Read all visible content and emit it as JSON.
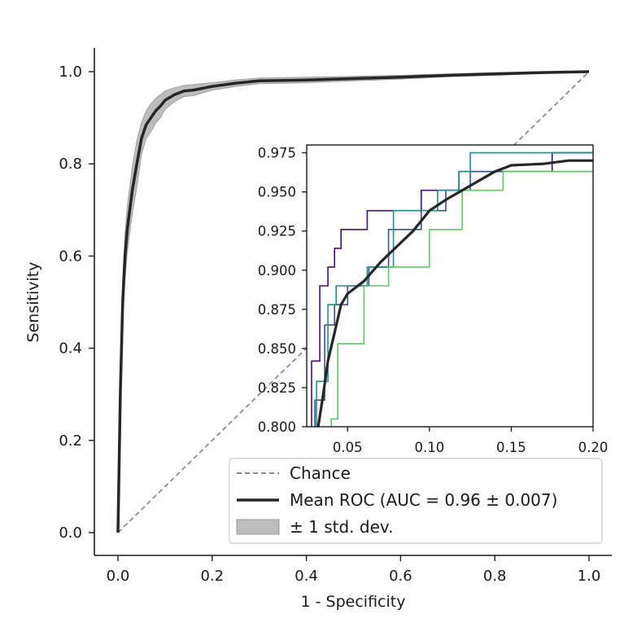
{
  "chart_data": {
    "type": "line",
    "xlabel": "1 - Specificity",
    "ylabel": "Sensitivity",
    "xlim": [
      0.0,
      1.0
    ],
    "ylim": [
      0.0,
      1.0
    ],
    "x_ticks": [
      0.0,
      0.2,
      0.4,
      0.6,
      0.8,
      1.0
    ],
    "x_tick_labels": [
      "0.0",
      "0.2",
      "0.4",
      "0.6",
      "0.8",
      "1.0"
    ],
    "y_ticks": [
      0.0,
      0.2,
      0.4,
      0.6,
      0.8,
      1.0
    ],
    "y_tick_labels": [
      "0.0",
      "0.2",
      "0.4",
      "0.6",
      "0.8",
      "1.0"
    ],
    "grid": false,
    "legend_position": "bottom-right",
    "legend": [
      {
        "label": "Chance",
        "style": "dashed-line",
        "color": "#8c8c8c"
      },
      {
        "label": "Mean ROC (AUC = 0.96 ± 0.007)",
        "style": "solid-line",
        "color": "#262626"
      },
      {
        "label": "± 1 std. dev.",
        "style": "patch",
        "color": "#bdbdbd"
      }
    ],
    "series": [
      {
        "name": "Chance",
        "color": "#8c8c8c",
        "x": [
          0.0,
          1.0
        ],
        "y": [
          0.0,
          1.0
        ]
      },
      {
        "name": "Mean ROC (AUC = 0.96 ± 0.007)",
        "color": "#262626",
        "x": [
          0.0,
          0.005,
          0.01,
          0.015,
          0.02,
          0.03,
          0.04,
          0.05,
          0.06,
          0.07,
          0.08,
          0.09,
          0.1,
          0.12,
          0.14,
          0.16,
          0.2,
          0.25,
          0.3,
          0.4,
          0.5,
          0.6,
          0.7,
          0.8,
          0.9,
          1.0
        ],
        "y": [
          0.0,
          0.3,
          0.5,
          0.6,
          0.66,
          0.74,
          0.8,
          0.855,
          0.885,
          0.9,
          0.915,
          0.925,
          0.938,
          0.95,
          0.958,
          0.96,
          0.968,
          0.975,
          0.98,
          0.982,
          0.985,
          0.988,
          0.992,
          0.995,
          0.998,
          1.0
        ]
      },
      {
        "name": "± 1 std. dev.",
        "color": "#bdbdbd",
        "x": [
          0.0,
          0.005,
          0.01,
          0.015,
          0.02,
          0.03,
          0.04,
          0.05,
          0.06,
          0.07,
          0.08,
          0.09,
          0.1,
          0.12,
          0.14,
          0.16,
          0.2,
          0.25,
          0.3,
          0.4,
          0.5,
          0.6,
          0.7,
          0.8,
          0.9,
          1.0
        ],
        "upper": [
          0.0,
          0.34,
          0.55,
          0.65,
          0.71,
          0.79,
          0.85,
          0.89,
          0.915,
          0.93,
          0.942,
          0.95,
          0.958,
          0.965,
          0.97,
          0.972,
          0.976,
          0.982,
          0.986,
          0.988,
          0.99,
          0.992,
          0.995,
          0.998,
          1.0,
          1.0
        ],
        "lower": [
          0.0,
          0.26,
          0.45,
          0.55,
          0.61,
          0.69,
          0.75,
          0.82,
          0.855,
          0.87,
          0.888,
          0.9,
          0.918,
          0.935,
          0.946,
          0.948,
          0.96,
          0.968,
          0.974,
          0.976,
          0.98,
          0.984,
          0.989,
          0.992,
          0.996,
          1.0
        ]
      }
    ],
    "inset": {
      "xlim": [
        0.025,
        0.2
      ],
      "ylim": [
        0.8,
        0.98
      ],
      "x_ticks": [
        0.05,
        0.1,
        0.15,
        0.2
      ],
      "x_tick_labels": [
        "0.05",
        "0.10",
        "0.15",
        "0.20"
      ],
      "y_ticks": [
        0.8,
        0.825,
        0.85,
        0.875,
        0.9,
        0.925,
        0.95,
        0.975
      ],
      "y_tick_labels": [
        "0.800",
        "0.825",
        "0.850",
        "0.875",
        "0.900",
        "0.925",
        "0.950",
        "0.975"
      ],
      "fold_curves": [
        {
          "color": "#440f6e",
          "points": [
            [
              0.028,
              0.8
            ],
            [
              0.028,
              0.842
            ],
            [
              0.033,
              0.842
            ],
            [
              0.033,
              0.89
            ],
            [
              0.038,
              0.89
            ],
            [
              0.038,
              0.902
            ],
            [
              0.042,
              0.902
            ],
            [
              0.042,
              0.914
            ],
            [
              0.046,
              0.914
            ],
            [
              0.046,
              0.926
            ],
            [
              0.062,
              0.926
            ],
            [
              0.062,
              0.938
            ],
            [
              0.095,
              0.938
            ],
            [
              0.095,
              0.951
            ],
            [
              0.118,
              0.951
            ],
            [
              0.118,
              0.963
            ],
            [
              0.175,
              0.963
            ],
            [
              0.175,
              0.975
            ],
            [
              0.2,
              0.975
            ]
          ]
        },
        {
          "color": "#3b528b",
          "points": [
            [
              0.03,
              0.8
            ],
            [
              0.03,
              0.817
            ],
            [
              0.036,
              0.817
            ],
            [
              0.036,
              0.865
            ],
            [
              0.042,
              0.865
            ],
            [
              0.042,
              0.878
            ],
            [
              0.05,
              0.878
            ],
            [
              0.05,
              0.89
            ],
            [
              0.063,
              0.89
            ],
            [
              0.063,
              0.902
            ],
            [
              0.075,
              0.902
            ],
            [
              0.075,
              0.926
            ],
            [
              0.095,
              0.926
            ],
            [
              0.095,
              0.938
            ],
            [
              0.11,
              0.938
            ],
            [
              0.11,
              0.951
            ],
            [
              0.125,
              0.951
            ],
            [
              0.125,
              0.963
            ],
            [
              0.2,
              0.963
            ]
          ]
        },
        {
          "color": "#21908c",
          "points": [
            [
              0.031,
              0.8
            ],
            [
              0.031,
              0.829
            ],
            [
              0.038,
              0.829
            ],
            [
              0.038,
              0.878
            ],
            [
              0.043,
              0.878
            ],
            [
              0.043,
              0.89
            ],
            [
              0.062,
              0.89
            ],
            [
              0.062,
              0.902
            ],
            [
              0.078,
              0.902
            ],
            [
              0.078,
              0.938
            ],
            [
              0.105,
              0.938
            ],
            [
              0.105,
              0.951
            ],
            [
              0.118,
              0.951
            ],
            [
              0.118,
              0.963
            ],
            [
              0.125,
              0.963
            ],
            [
              0.125,
              0.975
            ],
            [
              0.2,
              0.975
            ]
          ]
        },
        {
          "color": "#5dc863",
          "points": [
            [
              0.04,
              0.8
            ],
            [
              0.04,
              0.805
            ],
            [
              0.044,
              0.805
            ],
            [
              0.044,
              0.853
            ],
            [
              0.06,
              0.853
            ],
            [
              0.06,
              0.89
            ],
            [
              0.075,
              0.89
            ],
            [
              0.075,
              0.902
            ],
            [
              0.1,
              0.902
            ],
            [
              0.1,
              0.926
            ],
            [
              0.12,
              0.926
            ],
            [
              0.12,
              0.951
            ],
            [
              0.145,
              0.951
            ],
            [
              0.145,
              0.963
            ],
            [
              0.2,
              0.963
            ]
          ]
        }
      ],
      "mean_curve": {
        "color": "#262626",
        "points": [
          [
            0.032,
            0.8
          ],
          [
            0.035,
            0.82
          ],
          [
            0.038,
            0.842
          ],
          [
            0.042,
            0.86
          ],
          [
            0.046,
            0.878
          ],
          [
            0.05,
            0.885
          ],
          [
            0.06,
            0.893
          ],
          [
            0.07,
            0.905
          ],
          [
            0.08,
            0.915
          ],
          [
            0.09,
            0.925
          ],
          [
            0.1,
            0.938
          ],
          [
            0.11,
            0.945
          ],
          [
            0.12,
            0.951
          ],
          [
            0.13,
            0.957
          ],
          [
            0.14,
            0.963
          ],
          [
            0.15,
            0.967
          ],
          [
            0.17,
            0.968
          ],
          [
            0.185,
            0.97
          ],
          [
            0.2,
            0.97
          ]
        ]
      }
    }
  }
}
